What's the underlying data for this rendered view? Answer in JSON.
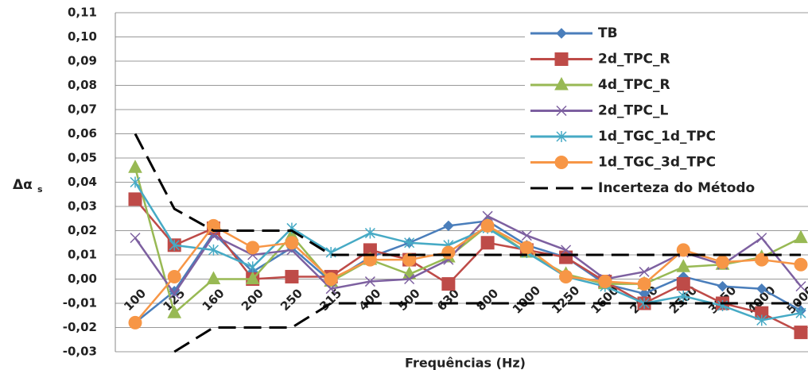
{
  "chart_data": {
    "type": "line",
    "xlabel": "Frequências (Hz)",
    "ylabel": "Δα",
    "ylabel_sub": "s",
    "categories": [
      "100",
      "125",
      "160",
      "200",
      "250",
      "315",
      "400",
      "500",
      "630",
      "800",
      "1000",
      "1250",
      "1600",
      "2000",
      "2500",
      "3150",
      "4000",
      "5000"
    ],
    "ylim": [
      -0.03,
      0.11
    ],
    "yticks": [
      {
        "value": -0.03,
        "label": "-0,03"
      },
      {
        "value": -0.02,
        "label": "-0,02"
      },
      {
        "value": -0.01,
        "label": "-0,01"
      },
      {
        "value": 0,
        "label": "0,00"
      },
      {
        "value": 0.01,
        "label": "0,01"
      },
      {
        "value": 0.02,
        "label": "0,02"
      },
      {
        "value": 0.03,
        "label": "0,03"
      },
      {
        "value": 0.04,
        "label": "0,04"
      },
      {
        "value": 0.05,
        "label": "0,05"
      },
      {
        "value": 0.06,
        "label": "0,06"
      },
      {
        "value": 0.07,
        "label": "0,07"
      },
      {
        "value": 0.08,
        "label": "0,08"
      },
      {
        "value": 0.09,
        "label": "0,09"
      },
      {
        "value": 0.1,
        "label": "0,10"
      },
      {
        "value": 0.11,
        "label": "0,11"
      }
    ],
    "grid": true,
    "legend": "right",
    "series": [
      {
        "name": "TB",
        "color": "#4a7ebb",
        "marker": "diamond",
        "values": [
          -0.018,
          -0.005,
          0.019,
          0.003,
          0.013,
          -0.001,
          0.009,
          0.015,
          0.022,
          0.024,
          0.014,
          0.009,
          -0.002,
          -0.006,
          0.001,
          -0.003,
          -0.004,
          -0.013
        ]
      },
      {
        "name": "2d_TPC_R",
        "color": "#be4b48",
        "marker": "square",
        "values": [
          0.033,
          0.014,
          0.021,
          0.0,
          0.001,
          0.001,
          0.012,
          0.008,
          -0.002,
          0.015,
          0.012,
          0.009,
          -0.001,
          -0.01,
          -0.002,
          -0.01,
          -0.014,
          -0.022
        ]
      },
      {
        "name": "4d_TPC_R",
        "color": "#98b954",
        "marker": "triangle",
        "values": [
          0.046,
          -0.014,
          0.0,
          0.0,
          0.018,
          -0.001,
          0.008,
          0.002,
          0.009,
          0.022,
          0.011,
          0.002,
          -0.002,
          -0.002,
          0.005,
          0.006,
          0.009,
          0.017
        ]
      },
      {
        "name": "2d_TPC_L",
        "color": "#7d60a0",
        "marker": "x",
        "values": [
          0.017,
          -0.006,
          0.018,
          0.01,
          0.012,
          -0.004,
          -0.001,
          0.0,
          0.008,
          0.026,
          0.018,
          0.012,
          0.0,
          0.003,
          0.011,
          0.006,
          0.017,
          -0.003
        ]
      },
      {
        "name": "1d_TGC_1d_TPC",
        "color": "#46aac5",
        "marker": "star",
        "values": [
          0.04,
          0.014,
          0.012,
          0.005,
          0.021,
          0.011,
          0.019,
          0.015,
          0.014,
          0.021,
          0.011,
          0.001,
          -0.003,
          -0.01,
          -0.007,
          -0.011,
          -0.017,
          -0.014
        ]
      },
      {
        "name": "1d_TGC_3d_TPC",
        "color": "#f79646",
        "marker": "circle",
        "values": [
          -0.018,
          0.001,
          0.022,
          0.013,
          0.015,
          0.0,
          0.008,
          0.008,
          0.011,
          0.022,
          0.013,
          0.001,
          -0.001,
          -0.002,
          0.012,
          0.007,
          0.008,
          0.006
        ]
      },
      {
        "name": "Incerteza do Método",
        "color": "#000000",
        "marker": "none",
        "dashed": true,
        "values": [
          0.06,
          0.029,
          0.02,
          0.02,
          0.02,
          0.01,
          0.01,
          0.01,
          0.01,
          0.01,
          0.01,
          0.01,
          0.01,
          0.01,
          0.01,
          0.01,
          0.01,
          0.01
        ]
      },
      {
        "color": "#000000",
        "marker": "none",
        "dashed": true,
        "values": [
          null,
          -0.03,
          -0.02,
          -0.02,
          -0.02,
          -0.01,
          -0.01,
          -0.01,
          -0.01,
          -0.01,
          -0.01,
          -0.01,
          -0.01,
          -0.01,
          -0.01,
          -0.01,
          -0.01,
          -0.01
        ]
      }
    ]
  }
}
